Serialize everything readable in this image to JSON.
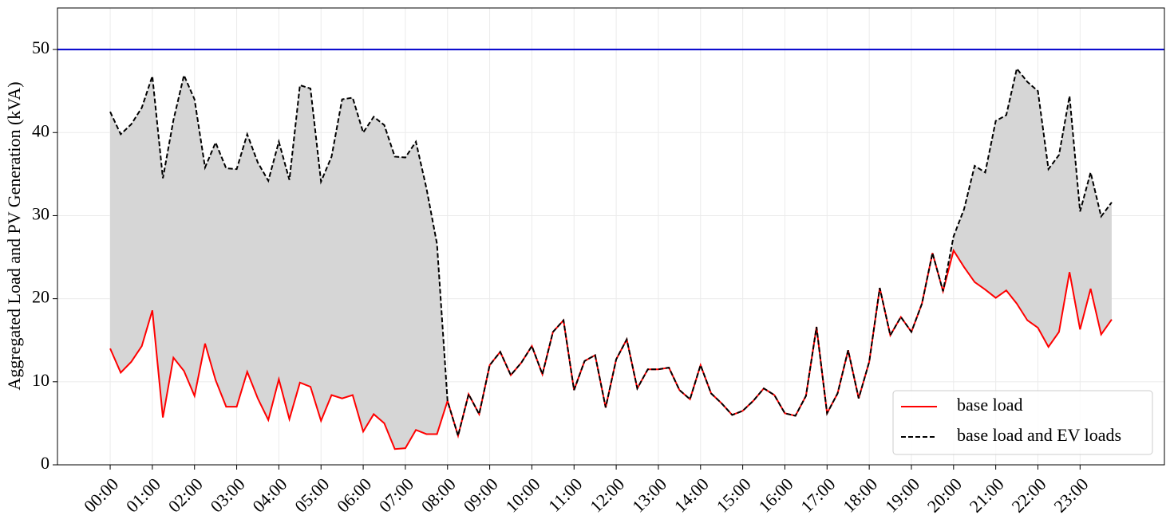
{
  "chart_data": {
    "type": "line",
    "y_label": "Aggregated Load and PV Generation (kVA)",
    "categories": [
      "00:00",
      null,
      null,
      null,
      "01:00",
      null,
      null,
      null,
      "02:00",
      null,
      null,
      null,
      "03:00",
      null,
      null,
      null,
      "04:00",
      null,
      null,
      null,
      "05:00",
      null,
      null,
      null,
      "06:00",
      null,
      null,
      null,
      "07:00",
      null,
      null,
      null,
      "08:00",
      null,
      null,
      null,
      "09:00",
      null,
      null,
      null,
      "10:00",
      null,
      null,
      null,
      "11:00",
      null,
      null,
      null,
      "12:00",
      null,
      null,
      null,
      "13:00",
      null,
      null,
      null,
      "14:00",
      null,
      null,
      null,
      "15:00",
      null,
      null,
      null,
      "16:00",
      null,
      null,
      null,
      "17:00",
      null,
      null,
      null,
      "18:00",
      null,
      null,
      null,
      "19:00",
      null,
      null,
      null,
      "20:00",
      null,
      null,
      null,
      "21:00",
      null,
      null,
      null,
      "22:00",
      null,
      null,
      null,
      "23:00",
      null,
      null,
      null
    ],
    "series": [
      {
        "name": "base load",
        "color": "#ff0000",
        "dash": false,
        "values": [
          14.0,
          11.1,
          12.4,
          14.3,
          18.6,
          5.7,
          12.9,
          11.3,
          8.3,
          14.6,
          10.2,
          7.0,
          7.0,
          11.2,
          8.0,
          5.4,
          10.3,
          5.5,
          9.9,
          9.4,
          5.3,
          8.4,
          8.0,
          8.4,
          4.0,
          6.1,
          5.0,
          1.9,
          2.0,
          4.2,
          3.7,
          3.7,
          7.7,
          3.5,
          8.5,
          6.1,
          12.0,
          13.6,
          10.8,
          12.3,
          14.3,
          10.9,
          16.0,
          17.4,
          9.0,
          12.5,
          13.2,
          6.9,
          12.7,
          15.1,
          9.2,
          11.5,
          11.5,
          11.7,
          9.0,
          7.9,
          12.0,
          8.6,
          7.4,
          6.0,
          6.5,
          7.7,
          9.2,
          8.4,
          6.2,
          5.9,
          8.3,
          16.6,
          6.2,
          8.6,
          13.8,
          8.0,
          12.4,
          21.3,
          15.6,
          17.8,
          16.0,
          19.4,
          25.5,
          20.9,
          25.8,
          23.8,
          22.0,
          21.1,
          20.1,
          21.0,
          19.4,
          17.4,
          16.5,
          14.2,
          16.0,
          23.2,
          16.3,
          21.2,
          15.7,
          17.5
        ]
      },
      {
        "name": "base load and EV loads",
        "color": "#000000",
        "dash": true,
        "values": [
          42.5,
          39.8,
          41.0,
          43.0,
          46.8,
          34.5,
          41.5,
          46.9,
          44.0,
          35.8,
          38.8,
          35.7,
          35.6,
          39.8,
          36.4,
          34.2,
          38.9,
          34.3,
          45.7,
          45.3,
          34.1,
          37.1,
          44.0,
          44.2,
          40.0,
          41.9,
          40.9,
          37.1,
          37.0,
          38.9,
          33.3,
          26.6,
          7.7,
          3.5,
          8.5,
          6.1,
          12.0,
          13.6,
          10.8,
          12.3,
          14.3,
          10.9,
          16.0,
          17.4,
          9.0,
          12.5,
          13.2,
          6.9,
          12.7,
          15.1,
          9.2,
          11.5,
          11.5,
          11.7,
          9.0,
          7.9,
          12.0,
          8.6,
          7.4,
          6.0,
          6.5,
          7.7,
          9.2,
          8.4,
          6.2,
          5.9,
          8.3,
          16.6,
          6.2,
          8.6,
          13.8,
          8.0,
          12.4,
          21.3,
          15.6,
          17.8,
          16.0,
          19.4,
          25.5,
          20.9,
          27.5,
          30.8,
          36.0,
          35.2,
          41.4,
          42.1,
          47.7,
          46.1,
          45.0,
          35.6,
          37.3,
          44.4,
          30.5,
          35.2,
          29.9,
          31.6
        ]
      }
    ],
    "fill_between": true,
    "fill_color": "#d6d6d6",
    "hline": {
      "value": 50,
      "color": "#0000cd"
    },
    "ylim": [
      0,
      55
    ],
    "yticks": [
      0,
      10,
      20,
      30,
      40,
      50
    ],
    "grid": true,
    "legend": "lower right"
  }
}
